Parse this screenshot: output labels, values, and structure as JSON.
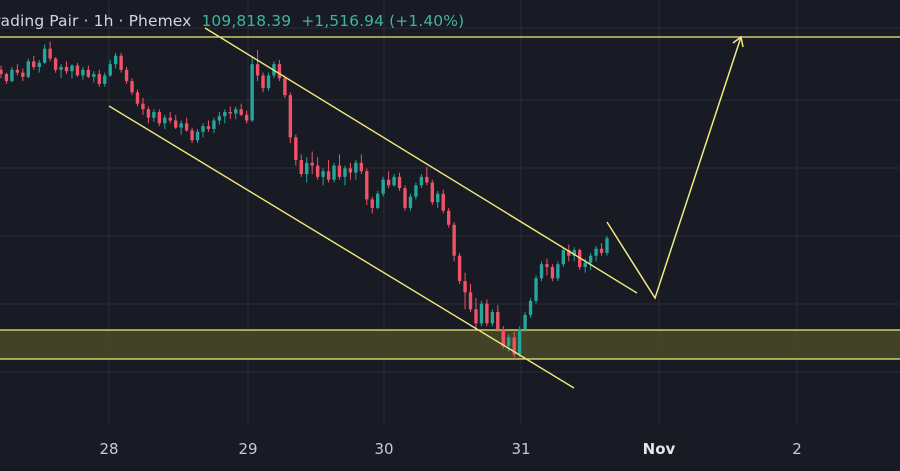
{
  "header": {
    "title": "rading Pair · 1h · Phemex",
    "price": "109,818.39",
    "change": "+1,516.94 (+1.40%)"
  },
  "colors": {
    "background": "#181a24",
    "grid": "#2a2d3a",
    "up": "#26a69a",
    "down": "#ef5368",
    "drawing": "#f2ea7c",
    "zone_fill": "#4a4a28"
  },
  "chart_data": {
    "type": "candlestick",
    "interval": "1h",
    "exchange": "Phemex",
    "x_ticks": [
      {
        "label": "28",
        "bold": false
      },
      {
        "label": "29",
        "bold": false
      },
      {
        "label": "30",
        "bold": false
      },
      {
        "label": "31",
        "bold": false
      },
      {
        "label": "Nov",
        "bold": true
      },
      {
        "label": "2",
        "bold": false
      }
    ],
    "y_range_estimate": [
      105500,
      117000
    ],
    "last_price": 109818.39,
    "change": 1516.94,
    "change_pct": 1.4,
    "ohlc": [
      [
        115800,
        115950,
        115500,
        115650
      ],
      [
        115650,
        115700,
        115300,
        115400
      ],
      [
        115400,
        115900,
        115350,
        115800
      ],
      [
        115800,
        116000,
        115600,
        115700
      ],
      [
        115700,
        115850,
        115400,
        115550
      ],
      [
        115550,
        116200,
        115500,
        116100
      ],
      [
        116100,
        116300,
        115800,
        115900
      ],
      [
        115900,
        116150,
        115700,
        116050
      ],
      [
        116050,
        116700,
        116000,
        116550
      ],
      [
        116550,
        116800,
        116100,
        116200
      ],
      [
        116200,
        116250,
        115700,
        115800
      ],
      [
        115800,
        116000,
        115500,
        115900
      ],
      [
        115900,
        116100,
        115650,
        115750
      ],
      [
        115750,
        116000,
        115500,
        115950
      ],
      [
        115950,
        116050,
        115550,
        115600
      ],
      [
        115600,
        115900,
        115450,
        115800
      ],
      [
        115800,
        115950,
        115500,
        115550
      ],
      [
        115550,
        115750,
        115350,
        115650
      ],
      [
        115650,
        115800,
        115200,
        115300
      ],
      [
        115300,
        115700,
        115200,
        115600
      ],
      [
        115600,
        116150,
        115550,
        116000
      ],
      [
        116000,
        116400,
        115850,
        116300
      ],
      [
        116300,
        116400,
        115700,
        115800
      ],
      [
        115800,
        115900,
        115300,
        115400
      ],
      [
        115400,
        115500,
        114900,
        115000
      ],
      [
        115000,
        115100,
        114500,
        114600
      ],
      [
        114600,
        114800,
        114200,
        114400
      ],
      [
        114400,
        114500,
        113900,
        114100
      ],
      [
        114100,
        114400,
        113950,
        114300
      ],
      [
        114300,
        114400,
        113800,
        113900
      ],
      [
        113900,
        114200,
        113700,
        114100
      ],
      [
        114100,
        114300,
        113900,
        114000
      ],
      [
        114000,
        114200,
        113700,
        113750
      ],
      [
        113750,
        114000,
        113500,
        113900
      ],
      [
        113900,
        114100,
        113600,
        113650
      ],
      [
        113650,
        113750,
        113200,
        113300
      ],
      [
        113300,
        113700,
        113200,
        113600
      ],
      [
        113600,
        113900,
        113400,
        113800
      ],
      [
        113800,
        114000,
        113600,
        113700
      ],
      [
        113700,
        114100,
        113550,
        114000
      ],
      [
        114000,
        114300,
        113850,
        114150
      ],
      [
        114150,
        114400,
        113900,
        114300
      ],
      [
        114300,
        114500,
        114050,
        114250
      ],
      [
        114250,
        114500,
        114050,
        114400
      ],
      [
        114400,
        114600,
        114150,
        114200
      ],
      [
        114200,
        114350,
        113900,
        114000
      ],
      [
        114000,
        116300,
        113950,
        116000
      ],
      [
        116000,
        116500,
        115400,
        115600
      ],
      [
        115600,
        115700,
        115000,
        115150
      ],
      [
        115150,
        115700,
        115050,
        115600
      ],
      [
        115600,
        116100,
        115500,
        116000
      ],
      [
        116000,
        116150,
        115400,
        115500
      ],
      [
        115500,
        115600,
        114800,
        114900
      ],
      [
        114900,
        115000,
        113200,
        113400
      ],
      [
        113400,
        113500,
        112400,
        112600
      ],
      [
        112600,
        112800,
        112000,
        112100
      ],
      [
        112100,
        112700,
        111800,
        112500
      ],
      [
        112500,
        112900,
        112100,
        112400
      ],
      [
        112400,
        112700,
        111900,
        112000
      ],
      [
        112000,
        112300,
        111700,
        112200
      ],
      [
        112200,
        112600,
        111800,
        111900
      ],
      [
        111900,
        112500,
        111800,
        112400
      ],
      [
        112400,
        112800,
        111900,
        112000
      ],
      [
        112000,
        112400,
        111700,
        112300
      ],
      [
        112300,
        112500,
        111900,
        112150
      ],
      [
        112150,
        112600,
        111900,
        112500
      ],
      [
        112500,
        112800,
        112100,
        112200
      ],
      [
        112200,
        112300,
        111000,
        111200
      ],
      [
        111200,
        111300,
        110700,
        110900
      ],
      [
        110900,
        111500,
        110850,
        111400
      ],
      [
        111400,
        112000,
        111300,
        111900
      ],
      [
        111900,
        112200,
        111600,
        111700
      ],
      [
        111700,
        112100,
        111650,
        112000
      ],
      [
        112000,
        112150,
        111500,
        111600
      ],
      [
        111600,
        111700,
        110800,
        110900
      ],
      [
        110900,
        111400,
        110800,
        111300
      ],
      [
        111300,
        111800,
        111200,
        111700
      ],
      [
        111700,
        112100,
        111600,
        112000
      ],
      [
        112000,
        112350,
        111700,
        111800
      ],
      [
        111800,
        111900,
        111000,
        111100
      ],
      [
        111100,
        111500,
        110900,
        111400
      ],
      [
        111400,
        111550,
        110700,
        110800
      ],
      [
        110800,
        110900,
        110200,
        110300
      ],
      [
        110300,
        110400,
        109000,
        109200
      ],
      [
        109200,
        109300,
        108200,
        108300
      ],
      [
        108300,
        108600,
        107300,
        107900
      ],
      [
        107900,
        108200,
        107200,
        107300
      ],
      [
        107300,
        107700,
        106600,
        106800
      ],
      [
        106800,
        107600,
        106700,
        107500
      ],
      [
        107500,
        107650,
        106700,
        106800
      ],
      [
        106800,
        107300,
        106700,
        107200
      ],
      [
        107200,
        107450,
        106500,
        106600
      ],
      [
        106600,
        106700,
        105900,
        106000
      ],
      [
        106000,
        106400,
        105800,
        106300
      ],
      [
        106300,
        106500,
        105600,
        105700
      ],
      [
        105700,
        106700,
        105600,
        106600
      ],
      [
        106600,
        107200,
        106500,
        107100
      ],
      [
        107100,
        107700,
        107000,
        107600
      ],
      [
        107600,
        108500,
        107500,
        108400
      ],
      [
        108400,
        109000,
        108300,
        108900
      ],
      [
        108900,
        109100,
        108500,
        108800
      ],
      [
        108800,
        108900,
        108300,
        108400
      ],
      [
        108400,
        109000,
        108300,
        108900
      ],
      [
        108900,
        109500,
        108800,
        109400
      ],
      [
        109400,
        109600,
        109000,
        109200
      ],
      [
        109200,
        109500,
        109000,
        109400
      ],
      [
        109400,
        109450,
        108700,
        108800
      ],
      [
        108800,
        109100,
        108600,
        108950
      ],
      [
        108950,
        109300,
        108700,
        109200
      ],
      [
        109200,
        109550,
        109000,
        109450
      ],
      [
        109450,
        109650,
        109200,
        109300
      ],
      [
        109300,
        109900,
        109200,
        109818
      ]
    ]
  }
}
